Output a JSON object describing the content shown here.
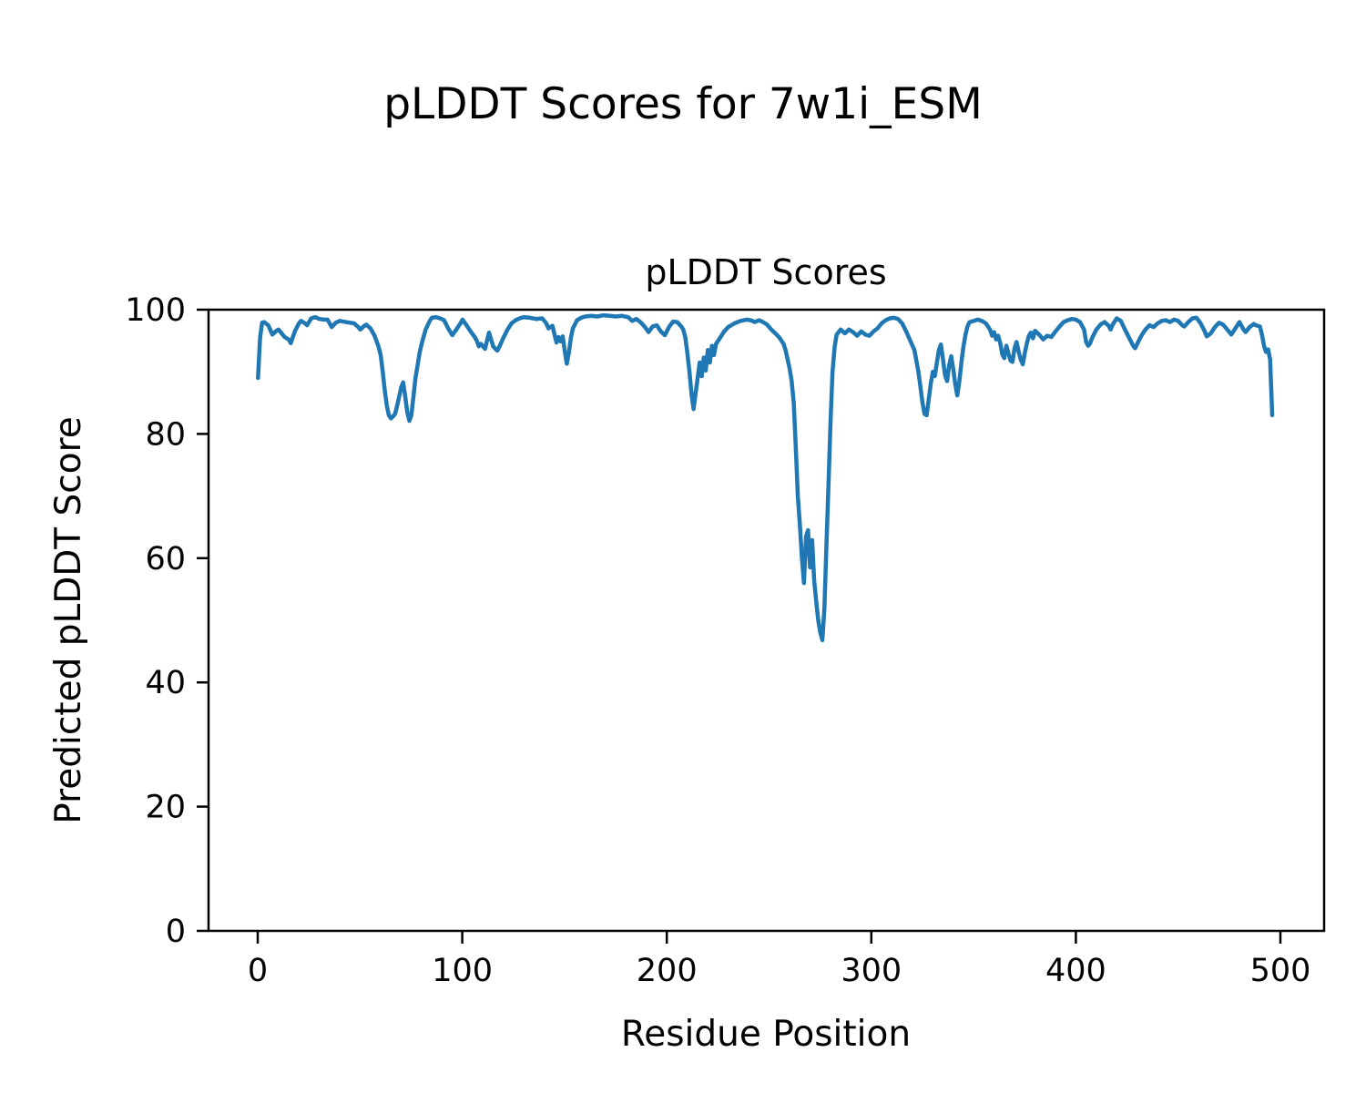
{
  "figure": {
    "suptitle": "pLDDT Scores for 7w1i_ESM",
    "background": "#ffffff"
  },
  "chart_data": {
    "type": "line",
    "title": "pLDDT Scores",
    "xlabel": "Residue Position",
    "ylabel": "Predicted pLDDT Score",
    "xlim": [
      -24.2,
      521.4
    ],
    "ylim": [
      0,
      100
    ],
    "x_ticks": [
      0,
      100,
      200,
      300,
      400,
      500
    ],
    "y_ticks": [
      0,
      20,
      40,
      60,
      80,
      100
    ],
    "grid": false,
    "legend": "none",
    "line_color": "#1f77b4",
    "series_name": "pLDDT",
    "points": [
      [
        0,
        89
      ],
      [
        1,
        95.5
      ],
      [
        2,
        97.9
      ],
      [
        3,
        98
      ],
      [
        5,
        97.5
      ],
      [
        7,
        96
      ],
      [
        9,
        96.6
      ],
      [
        10,
        96.8
      ],
      [
        12,
        96
      ],
      [
        13,
        95.6
      ],
      [
        15,
        95.2
      ],
      [
        16,
        94.6
      ],
      [
        18,
        96.5
      ],
      [
        20,
        97.8
      ],
      [
        21,
        98.2
      ],
      [
        23,
        97.8
      ],
      [
        24,
        97.5
      ],
      [
        26,
        98.6
      ],
      [
        28,
        98.8
      ],
      [
        30,
        98.5
      ],
      [
        32,
        98.4
      ],
      [
        34,
        98.4
      ],
      [
        36,
        97.2
      ],
      [
        38,
        97.9
      ],
      [
        40,
        98.2
      ],
      [
        43,
        98
      ],
      [
        45,
        97.9
      ],
      [
        47,
        97.8
      ],
      [
        49,
        97.2
      ],
      [
        50,
        96.8
      ],
      [
        52,
        97.4
      ],
      [
        53,
        97.6
      ],
      [
        55,
        97
      ],
      [
        57,
        95.8
      ],
      [
        59,
        94
      ],
      [
        60,
        92.7
      ],
      [
        61,
        90
      ],
      [
        62,
        87
      ],
      [
        63,
        84.5
      ],
      [
        64,
        83
      ],
      [
        65,
        82.5
      ],
      [
        66,
        82.8
      ],
      [
        67,
        83.2
      ],
      [
        68,
        84.5
      ],
      [
        69,
        86
      ],
      [
        70,
        87.5
      ],
      [
        71,
        88.3
      ],
      [
        72,
        86
      ],
      [
        73,
        83.5
      ],
      [
        74,
        82.1
      ],
      [
        75,
        83
      ],
      [
        76,
        86
      ],
      [
        77,
        89
      ],
      [
        78,
        91
      ],
      [
        79,
        93
      ],
      [
        80,
        94.5
      ],
      [
        82,
        96.8
      ],
      [
        84,
        98.2
      ],
      [
        85,
        98.7
      ],
      [
        87,
        98.8
      ],
      [
        89,
        98.6
      ],
      [
        91,
        98.3
      ],
      [
        93,
        97
      ],
      [
        95,
        95.9
      ],
      [
        97,
        96.8
      ],
      [
        99,
        97.8
      ],
      [
        100,
        98.4
      ],
      [
        102,
        97.5
      ],
      [
        104,
        96.5
      ],
      [
        106,
        95.6
      ],
      [
        107,
        95
      ],
      [
        108,
        94.1
      ],
      [
        109,
        94.5
      ],
      [
        111,
        93.7
      ],
      [
        113,
        96.3
      ],
      [
        115,
        94.1
      ],
      [
        117,
        93.4
      ],
      [
        118,
        94
      ],
      [
        120,
        95.5
      ],
      [
        122,
        96.8
      ],
      [
        124,
        97.8
      ],
      [
        126,
        98.3
      ],
      [
        128,
        98.6
      ],
      [
        130,
        98.8
      ],
      [
        133,
        98.7
      ],
      [
        136,
        98.5
      ],
      [
        139,
        98.6
      ],
      [
        141,
        97.8
      ],
      [
        142,
        97
      ],
      [
        144,
        97.4
      ],
      [
        146,
        94.7
      ],
      [
        147,
        95.6
      ],
      [
        148,
        94.9
      ],
      [
        149,
        95.7
      ],
      [
        150,
        93.4
      ],
      [
        151,
        91.3
      ],
      [
        152,
        93
      ],
      [
        153,
        95.5
      ],
      [
        154,
        97
      ],
      [
        156,
        98.3
      ],
      [
        158,
        98.7
      ],
      [
        160,
        98.9
      ],
      [
        163,
        99
      ],
      [
        166,
        98.9
      ],
      [
        169,
        99.1
      ],
      [
        172,
        99
      ],
      [
        175,
        98.9
      ],
      [
        178,
        99
      ],
      [
        181,
        98.8
      ],
      [
        183,
        98.2
      ],
      [
        185,
        98.5
      ],
      [
        187,
        98
      ],
      [
        189,
        97.3
      ],
      [
        191,
        96.4
      ],
      [
        193,
        97.3
      ],
      [
        195,
        97.5
      ],
      [
        197,
        96.5
      ],
      [
        199,
        95.9
      ],
      [
        201,
        97.2
      ],
      [
        203,
        98.1
      ],
      [
        205,
        98
      ],
      [
        207,
        97.3
      ],
      [
        208,
        96.8
      ],
      [
        209,
        95.5
      ],
      [
        210,
        93
      ],
      [
        211,
        90
      ],
      [
        212,
        86.5
      ],
      [
        213,
        84
      ],
      [
        214,
        86.5
      ],
      [
        215,
        89
      ],
      [
        216,
        91.5
      ],
      [
        217,
        89.3
      ],
      [
        218,
        92.3
      ],
      [
        219,
        90.2
      ],
      [
        220,
        93.5
      ],
      [
        221,
        91.5
      ],
      [
        222,
        94.2
      ],
      [
        223,
        92.7
      ],
      [
        224,
        94.5
      ],
      [
        226,
        95.5
      ],
      [
        228,
        96.5
      ],
      [
        230,
        97.2
      ],
      [
        233,
        97.8
      ],
      [
        236,
        98.2
      ],
      [
        239,
        98.4
      ],
      [
        241,
        98.3
      ],
      [
        243,
        98
      ],
      [
        245,
        98.3
      ],
      [
        247,
        98
      ],
      [
        249,
        97.6
      ],
      [
        251,
        96.8
      ],
      [
        253,
        96.2
      ],
      [
        255,
        95.5
      ],
      [
        257,
        94.5
      ],
      [
        258,
        93.5
      ],
      [
        259,
        92
      ],
      [
        260,
        90.5
      ],
      [
        261,
        88.5
      ],
      [
        262,
        85
      ],
      [
        263,
        78
      ],
      [
        264,
        70
      ],
      [
        265,
        65.5
      ],
      [
        266,
        60
      ],
      [
        267,
        56
      ],
      [
        268,
        63.5
      ],
      [
        269,
        64.5
      ],
      [
        270,
        58.5
      ],
      [
        271,
        62.9
      ],
      [
        272,
        56.5
      ],
      [
        273,
        53
      ],
      [
        274,
        50
      ],
      [
        275,
        48
      ],
      [
        276,
        46.8
      ],
      [
        277,
        52
      ],
      [
        278,
        62
      ],
      [
        279,
        72
      ],
      [
        280,
        82
      ],
      [
        281,
        90
      ],
      [
        282,
        94
      ],
      [
        283,
        96
      ],
      [
        285,
        96.8
      ],
      [
        287,
        96.2
      ],
      [
        289,
        96.8
      ],
      [
        291,
        96.4
      ],
      [
        293,
        95.8
      ],
      [
        295,
        96.5
      ],
      [
        297,
        96
      ],
      [
        299,
        95.8
      ],
      [
        301,
        96.5
      ],
      [
        303,
        97
      ],
      [
        305,
        97.8
      ],
      [
        307,
        98.3
      ],
      [
        309,
        98.6
      ],
      [
        311,
        98.7
      ],
      [
        313,
        98.5
      ],
      [
        315,
        97.8
      ],
      [
        317,
        96.5
      ],
      [
        319,
        95
      ],
      [
        321,
        93.5
      ],
      [
        323,
        90
      ],
      [
        324,
        87.5
      ],
      [
        325,
        85
      ],
      [
        326,
        83.2
      ],
      [
        327,
        83
      ],
      [
        328,
        85.5
      ],
      [
        329,
        88
      ],
      [
        330,
        90
      ],
      [
        331,
        89.3
      ],
      [
        332,
        91.5
      ],
      [
        333,
        93.5
      ],
      [
        334,
        94.4
      ],
      [
        335,
        92
      ],
      [
        336,
        89.5
      ],
      [
        337,
        88.5
      ],
      [
        338,
        91
      ],
      [
        339,
        92.5
      ],
      [
        340,
        90.5
      ],
      [
        341,
        88
      ],
      [
        342,
        86.2
      ],
      [
        343,
        88.5
      ],
      [
        344,
        91.5
      ],
      [
        345,
        94
      ],
      [
        346,
        96
      ],
      [
        347,
        97.3
      ],
      [
        348,
        98
      ],
      [
        350,
        98.2
      ],
      [
        352,
        98.4
      ],
      [
        354,
        98.2
      ],
      [
        356,
        97.8
      ],
      [
        358,
        96.8
      ],
      [
        359,
        95.8
      ],
      [
        360,
        96.4
      ],
      [
        361,
        95.2
      ],
      [
        362,
        95.8
      ],
      [
        363,
        94.6
      ],
      [
        364,
        92.8
      ],
      [
        365,
        92.2
      ],
      [
        366,
        94.2
      ],
      [
        367,
        93
      ],
      [
        368,
        91.8
      ],
      [
        369,
        91.6
      ],
      [
        370,
        93.8
      ],
      [
        371,
        94.8
      ],
      [
        372,
        93.2
      ],
      [
        373,
        92
      ],
      [
        374,
        91.2
      ],
      [
        375,
        93
      ],
      [
        376,
        94.5
      ],
      [
        377,
        95.8
      ],
      [
        378,
        96.3
      ],
      [
        379,
        95.4
      ],
      [
        380,
        96.6
      ],
      [
        382,
        96
      ],
      [
        384,
        95.2
      ],
      [
        386,
        95.8
      ],
      [
        388,
        95.6
      ],
      [
        390,
        96.5
      ],
      [
        392,
        97.3
      ],
      [
        394,
        98
      ],
      [
        396,
        98.3
      ],
      [
        398,
        98.5
      ],
      [
        400,
        98.4
      ],
      [
        402,
        98
      ],
      [
        404,
        96.8
      ],
      [
        405,
        94.8
      ],
      [
        406,
        94.2
      ],
      [
        407,
        94.6
      ],
      [
        408,
        95.5
      ],
      [
        410,
        96.8
      ],
      [
        412,
        97.6
      ],
      [
        414,
        98
      ],
      [
        416,
        97.4
      ],
      [
        417,
        96.8
      ],
      [
        418,
        97.6
      ],
      [
        420,
        98.6
      ],
      [
        422,
        98.2
      ],
      [
        424,
        96.8
      ],
      [
        426,
        95.5
      ],
      [
        428,
        94.2
      ],
      [
        429,
        93.8
      ],
      [
        430,
        94.5
      ],
      [
        432,
        95.8
      ],
      [
        434,
        96.8
      ],
      [
        436,
        97.5
      ],
      [
        438,
        97.2
      ],
      [
        440,
        97.8
      ],
      [
        442,
        98.2
      ],
      [
        444,
        98.3
      ],
      [
        446,
        98
      ],
      [
        448,
        98.4
      ],
      [
        450,
        98.2
      ],
      [
        452,
        97.5
      ],
      [
        453,
        97.3
      ],
      [
        455,
        98
      ],
      [
        457,
        98.6
      ],
      [
        459,
        98.7
      ],
      [
        461,
        97.8
      ],
      [
        463,
        96.5
      ],
      [
        464,
        95.7
      ],
      [
        466,
        96.2
      ],
      [
        468,
        97.2
      ],
      [
        470,
        97.9
      ],
      [
        472,
        97.6
      ],
      [
        474,
        96.8
      ],
      [
        476,
        96
      ],
      [
        478,
        97
      ],
      [
        480,
        98
      ],
      [
        482,
        96.8
      ],
      [
        483,
        96.4
      ],
      [
        485,
        97.2
      ],
      [
        487,
        97.7
      ],
      [
        488,
        97.5
      ],
      [
        490,
        97.3
      ],
      [
        491,
        96
      ],
      [
        492,
        94.2
      ],
      [
        493,
        93.2
      ],
      [
        494,
        93.6
      ],
      [
        495,
        92
      ],
      [
        496,
        83
      ]
    ]
  }
}
